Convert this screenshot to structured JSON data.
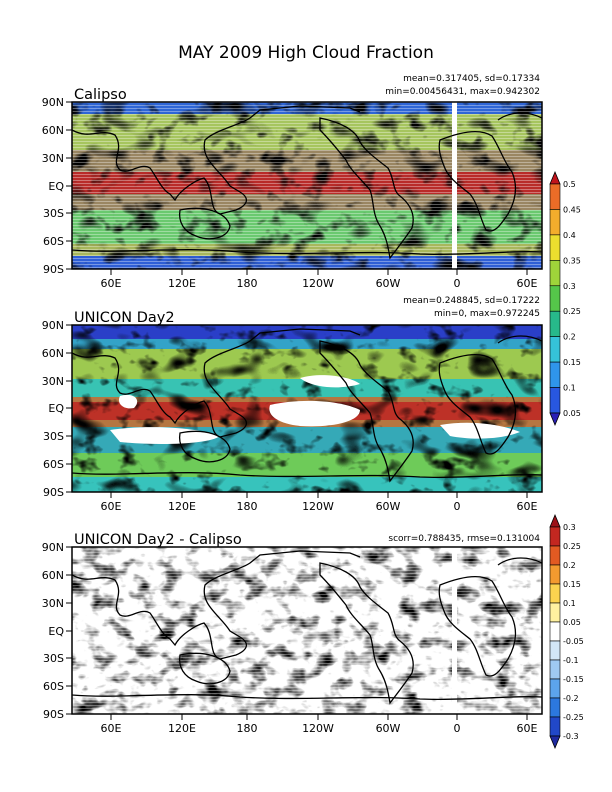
{
  "figure": {
    "title": "MAY 2009 High Cloud Fraction"
  },
  "chart_data": [
    {
      "type": "heatmap",
      "title": "Calipso",
      "stats": [
        "mean=0.317405, sd=0.17334",
        "min=0.00456431, max=0.942302"
      ],
      "yticks": [
        "90N",
        "60N",
        "30N",
        "EQ",
        "30S",
        "60S",
        "90S"
      ],
      "xticks": [
        "60E",
        "120E",
        "180",
        "120W",
        "60W",
        "0",
        "60E"
      ],
      "colorbar": {
        "labels": [
          "0.05",
          "0.1",
          "0.15",
          "0.2",
          "0.25",
          "0.3",
          "0.35",
          "0.4",
          "0.45",
          "0.5"
        ],
        "colors": [
          "#2a1fb5",
          "#2857e0",
          "#2f95ea",
          "#35c3d8",
          "#27b98a",
          "#55c64a",
          "#9fd43a",
          "#ecde2e",
          "#f3ad2c",
          "#ea6c27",
          "#c0141c"
        ]
      }
    },
    {
      "type": "heatmap",
      "title": "UNICON Day2",
      "stats": [
        "mean=0.248845, sd=0.17222",
        "min=0, max=0.972245"
      ],
      "yticks": [
        "90N",
        "60N",
        "30N",
        "EQ",
        "30S",
        "60S",
        "90S"
      ],
      "xticks": [
        "60E",
        "120E",
        "180",
        "120W",
        "60W",
        "0",
        "60E"
      ]
    },
    {
      "type": "heatmap",
      "title": "UNICON Day2 - Calipso",
      "stats": [
        "scorr=0.788435, rmse=0.131004"
      ],
      "yticks": [
        "90N",
        "60N",
        "30N",
        "EQ",
        "30S",
        "60S",
        "90S"
      ],
      "xticks": [
        "60E",
        "120E",
        "180",
        "120W",
        "60W",
        "0",
        "60E"
      ],
      "colorbar": {
        "labels": [
          "-0.3",
          "-0.25",
          "-0.2",
          "-0.15",
          "-0.1",
          "-0.05",
          "0.05",
          "0.1",
          "0.15",
          "0.2",
          "0.25",
          "0.3"
        ],
        "colors": [
          "#1f2aa0",
          "#2148c8",
          "#2c78de",
          "#5ca4ec",
          "#9fc9f2",
          "#d3e6f7",
          "#ffffff",
          "#fff1a0",
          "#fbd34f",
          "#f39a2f",
          "#e25a22",
          "#c32720",
          "#9c1118"
        ]
      }
    }
  ]
}
